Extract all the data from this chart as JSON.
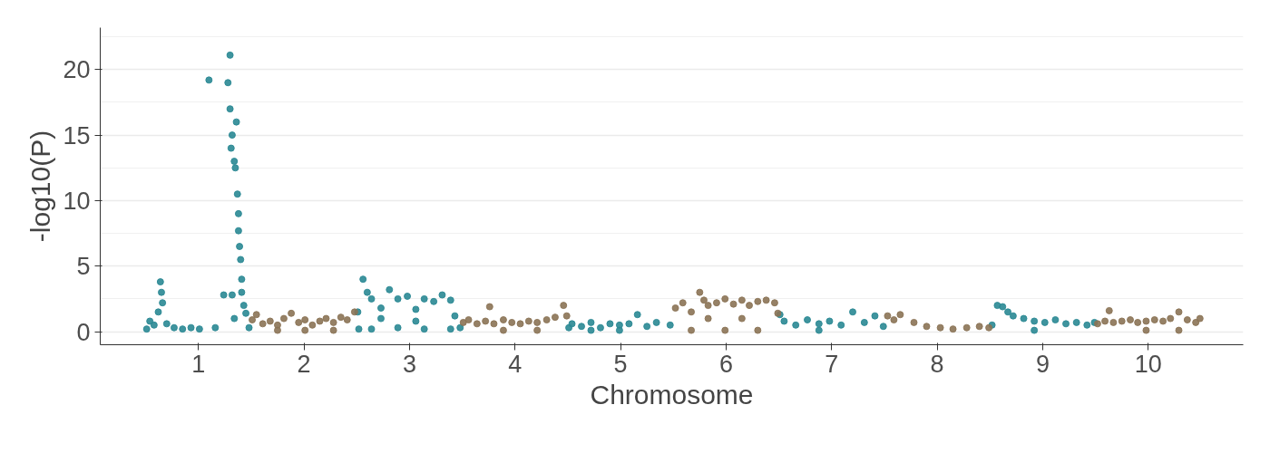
{
  "chart_data": {
    "type": "scatter",
    "xlabel": "Chromosome",
    "ylabel": "-log10(P)",
    "xlim": [
      0.07,
      10.9
    ],
    "ylim": [
      -1,
      23.2
    ],
    "xticks": [
      1,
      2,
      3,
      4,
      5,
      6,
      7,
      8,
      9,
      10
    ],
    "yticks": [
      0,
      5,
      10,
      15,
      20
    ],
    "grid": "y",
    "marker": "circle",
    "series": [
      {
        "color": "#2a8893",
        "x": [
          0.51,
          0.54,
          0.58,
          0.62,
          0.64,
          0.65,
          0.66,
          0.7,
          0.77,
          0.85,
          0.93,
          1.01,
          1.1,
          1.16,
          1.24,
          1.28,
          1.3,
          1.3,
          1.31,
          1.32,
          1.34,
          1.35,
          1.36,
          1.37,
          1.38,
          1.38,
          1.39,
          1.4,
          1.41,
          1.41,
          1.43,
          1.45,
          1.32,
          1.34,
          1.48,
          2.51,
          2.52,
          2.56,
          2.6,
          2.64,
          2.73,
          2.81,
          2.89,
          2.98,
          3.06,
          3.14,
          3.23,
          3.31,
          3.39,
          3.43,
          3.48,
          2.64,
          2.89,
          3.14,
          3.39,
          2.73,
          3.06,
          4.51,
          4.54,
          4.63,
          4.72,
          4.81,
          4.9,
          4.99,
          5.08,
          5.16,
          5.25,
          5.34,
          5.47,
          4.99,
          4.72,
          6.51,
          6.55,
          6.66,
          6.77,
          6.88,
          6.98,
          7.09,
          7.2,
          7.31,
          7.41,
          7.49,
          6.88,
          8.52,
          8.57,
          8.62,
          8.67,
          8.72,
          8.82,
          8.92,
          9.02,
          9.12,
          9.22,
          9.32,
          9.42,
          9.49,
          8.92
        ],
        "values": [
          0.2,
          0.8,
          0.5,
          1.5,
          3.8,
          3,
          2.2,
          0.6,
          0.3,
          0.2,
          0.3,
          0.2,
          19.2,
          0.3,
          2.8,
          19,
          21.1,
          17,
          14,
          15,
          13,
          12.5,
          16,
          10.5,
          9,
          7.7,
          6.5,
          5.5,
          4,
          3,
          2,
          1.4,
          2.8,
          1,
          0.3,
          1.5,
          0.2,
          4,
          3,
          2.5,
          1.8,
          3.2,
          2.5,
          2.7,
          1.7,
          2.5,
          2.3,
          2.8,
          2.4,
          1.2,
          0.3,
          0.2,
          0.3,
          0.2,
          0.2,
          1,
          0.8,
          0.3,
          0.6,
          0.4,
          0.7,
          0.3,
          0.6,
          0.5,
          0.6,
          1.3,
          0.4,
          0.7,
          0.5,
          0.1,
          0.1,
          1.3,
          0.8,
          0.5,
          0.9,
          0.6,
          0.8,
          0.5,
          1.5,
          0.7,
          1.2,
          0.4,
          0.1,
          0.5,
          2,
          1.9,
          1.5,
          1.2,
          1,
          0.8,
          0.7,
          0.9,
          0.6,
          0.7,
          0.5,
          0.7,
          0.1
        ]
      },
      {
        "color": "#8b7355",
        "x": [
          1.51,
          1.55,
          1.61,
          1.68,
          1.75,
          1.81,
          1.88,
          1.95,
          2.01,
          2.08,
          2.15,
          2.21,
          2.28,
          2.35,
          2.41,
          2.48,
          2.01,
          2.28,
          1.75,
          3.51,
          3.56,
          3.64,
          3.72,
          3.76,
          3.8,
          3.89,
          3.97,
          4.05,
          4.13,
          4.21,
          4.3,
          4.38,
          4.46,
          4.49,
          3.89,
          4.21,
          5.52,
          5.59,
          5.67,
          5.75,
          5.79,
          5.83,
          5.91,
          5.99,
          6.07,
          6.15,
          6.22,
          6.3,
          6.38,
          6.46,
          6.49,
          5.67,
          5.99,
          6.3,
          5.83,
          6.15,
          7.53,
          7.59,
          7.65,
          7.78,
          7.9,
          8.03,
          8.15,
          8.28,
          8.4,
          8.49,
          9.52,
          9.59,
          9.63,
          9.67,
          9.75,
          9.83,
          9.9,
          9.98,
          10.06,
          10.14,
          10.21,
          10.29,
          10.37,
          10.45,
          10.49,
          9.98,
          10.29
        ],
        "values": [
          0.9,
          1.3,
          0.6,
          0.8,
          0.5,
          1,
          1.4,
          0.7,
          0.9,
          0.5,
          0.8,
          1,
          0.7,
          1.1,
          0.9,
          1.5,
          0.1,
          0.1,
          0.1,
          0.7,
          0.9,
          0.6,
          0.8,
          1.9,
          0.6,
          0.9,
          0.7,
          0.6,
          0.8,
          0.7,
          0.9,
          1.1,
          2,
          1.2,
          0.1,
          0.1,
          1.8,
          2.2,
          1.5,
          3,
          2.4,
          2,
          2.2,
          2.5,
          2.1,
          2.4,
          2,
          2.3,
          2.4,
          2.2,
          1.4,
          0.1,
          0.1,
          0.1,
          1,
          1,
          1.2,
          0.9,
          1.3,
          0.7,
          0.4,
          0.3,
          0.2,
          0.3,
          0.4,
          0.3,
          0.6,
          0.8,
          1.6,
          0.7,
          0.8,
          0.9,
          0.7,
          0.8,
          0.9,
          0.8,
          1,
          1.5,
          0.9,
          0.7,
          1,
          0.1,
          0.1
        ]
      }
    ]
  }
}
